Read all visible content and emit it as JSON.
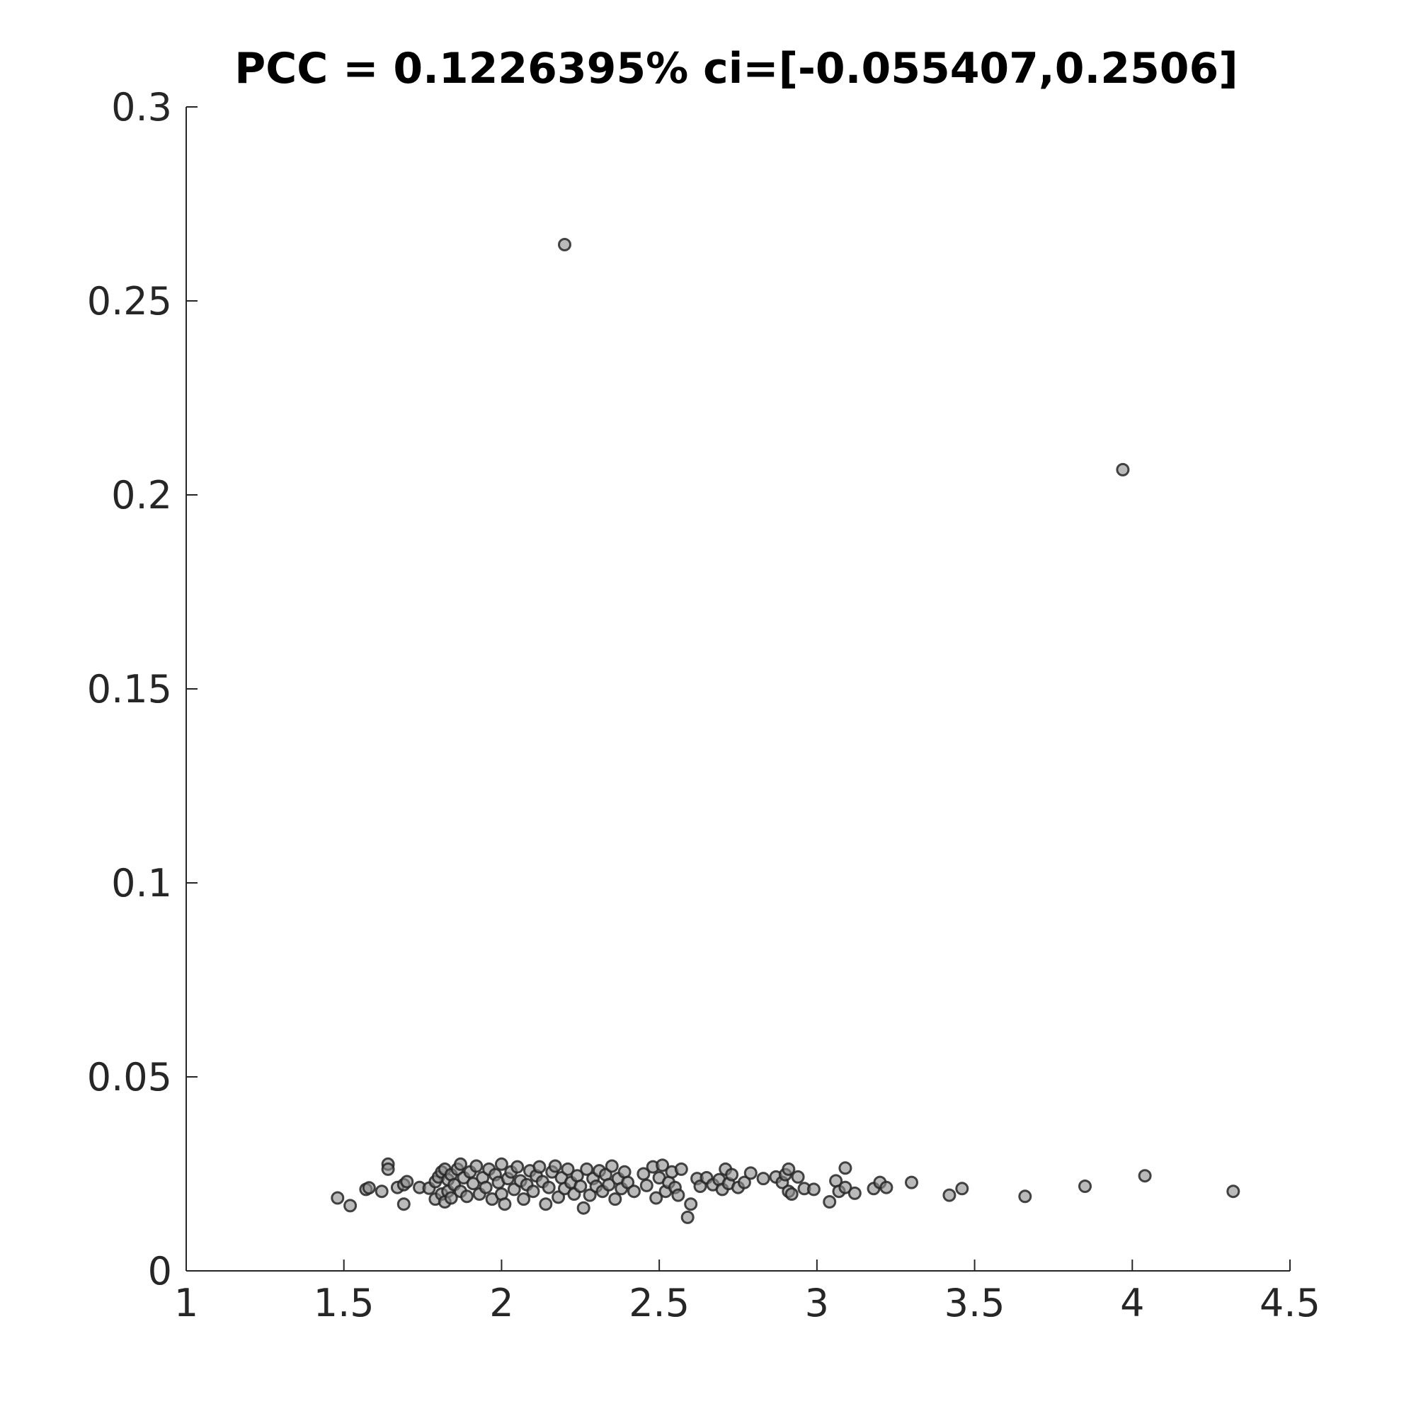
{
  "chart_data": {
    "type": "scatter",
    "title": "PCC = 0.1226395% ci=[-0.055407,0.2506]",
    "xlabel": "",
    "ylabel": "",
    "xlim": [
      1,
      4.5
    ],
    "ylim": [
      0,
      0.3
    ],
    "xticks": [
      "1",
      "1.5",
      "2",
      "2.5",
      "3",
      "3.5",
      "4",
      "4.5"
    ],
    "yticks": [
      "0",
      "0.05",
      "0.1",
      "0.15",
      "0.2",
      "0.25",
      "0.3"
    ],
    "xtick_values": [
      1,
      1.5,
      2,
      2.5,
      3,
      3.5,
      4,
      4.5
    ],
    "ytick_values": [
      0,
      0.05,
      0.1,
      0.15,
      0.2,
      0.25,
      0.3
    ],
    "grid": false,
    "legend": "none",
    "marker_color": "#8c8c8c",
    "edge_color": "#262626",
    "points": [
      [
        2.2,
        0.2645
      ],
      [
        3.97,
        0.2065
      ],
      [
        1.48,
        0.0188
      ],
      [
        1.52,
        0.0168
      ],
      [
        1.57,
        0.021
      ],
      [
        1.58,
        0.0214
      ],
      [
        1.62,
        0.0205
      ],
      [
        1.64,
        0.0275
      ],
      [
        1.64,
        0.0262
      ],
      [
        1.67,
        0.0215
      ],
      [
        1.69,
        0.0222
      ],
      [
        1.69,
        0.0172
      ],
      [
        1.7,
        0.023
      ],
      [
        1.74,
        0.0215
      ],
      [
        1.77,
        0.0213
      ],
      [
        1.79,
        0.023
      ],
      [
        1.79,
        0.0185
      ],
      [
        1.8,
        0.0242
      ],
      [
        1.81,
        0.0255
      ],
      [
        1.81,
        0.0198
      ],
      [
        1.82,
        0.0262
      ],
      [
        1.82,
        0.0178
      ],
      [
        1.83,
        0.0235
      ],
      [
        1.83,
        0.0205
      ],
      [
        1.84,
        0.0248
      ],
      [
        1.84,
        0.0188
      ],
      [
        1.85,
        0.0222
      ],
      [
        1.86,
        0.0262
      ],
      [
        1.87,
        0.0275
      ],
      [
        1.87,
        0.0205
      ],
      [
        1.88,
        0.024
      ],
      [
        1.89,
        0.0192
      ],
      [
        1.9,
        0.0255
      ],
      [
        1.91,
        0.0225
      ],
      [
        1.92,
        0.027
      ],
      [
        1.93,
        0.0198
      ],
      [
        1.94,
        0.024
      ],
      [
        1.95,
        0.0215
      ],
      [
        1.96,
        0.0262
      ],
      [
        1.97,
        0.0185
      ],
      [
        1.98,
        0.0248
      ],
      [
        1.99,
        0.0228
      ],
      [
        2.0,
        0.0275
      ],
      [
        2.0,
        0.0198
      ],
      [
        2.01,
        0.0172
      ],
      [
        2.02,
        0.0238
      ],
      [
        2.03,
        0.0255
      ],
      [
        2.04,
        0.021
      ],
      [
        2.05,
        0.0268
      ],
      [
        2.06,
        0.0232
      ],
      [
        2.07,
        0.0185
      ],
      [
        2.08,
        0.0222
      ],
      [
        2.09,
        0.0258
      ],
      [
        2.1,
        0.0205
      ],
      [
        2.11,
        0.0245
      ],
      [
        2.12,
        0.0268
      ],
      [
        2.13,
        0.023
      ],
      [
        2.14,
        0.0172
      ],
      [
        2.15,
        0.0215
      ],
      [
        2.16,
        0.0255
      ],
      [
        2.17,
        0.027
      ],
      [
        2.18,
        0.019
      ],
      [
        2.19,
        0.024
      ],
      [
        2.2,
        0.0212
      ],
      [
        2.21,
        0.0262
      ],
      [
        2.22,
        0.0228
      ],
      [
        2.23,
        0.0198
      ],
      [
        2.24,
        0.0245
      ],
      [
        2.25,
        0.0218
      ],
      [
        2.26,
        0.0162
      ],
      [
        2.27,
        0.0262
      ],
      [
        2.28,
        0.0195
      ],
      [
        2.29,
        0.0238
      ],
      [
        2.3,
        0.0218
      ],
      [
        2.31,
        0.0258
      ],
      [
        2.32,
        0.0205
      ],
      [
        2.33,
        0.0248
      ],
      [
        2.34,
        0.0222
      ],
      [
        2.35,
        0.027
      ],
      [
        2.36,
        0.0185
      ],
      [
        2.37,
        0.0238
      ],
      [
        2.38,
        0.0212
      ],
      [
        2.39,
        0.0255
      ],
      [
        2.4,
        0.0228
      ],
      [
        2.42,
        0.0205
      ],
      [
        2.45,
        0.025
      ],
      [
        2.46,
        0.022
      ],
      [
        2.48,
        0.0268
      ],
      [
        2.49,
        0.0188
      ],
      [
        2.5,
        0.024
      ],
      [
        2.51,
        0.0272
      ],
      [
        2.52,
        0.0205
      ],
      [
        2.53,
        0.0228
      ],
      [
        2.54,
        0.0255
      ],
      [
        2.55,
        0.0215
      ],
      [
        2.56,
        0.0195
      ],
      [
        2.57,
        0.0262
      ],
      [
        2.59,
        0.0138
      ],
      [
        2.6,
        0.0172
      ],
      [
        2.62,
        0.0238
      ],
      [
        2.63,
        0.0218
      ],
      [
        2.65,
        0.024
      ],
      [
        2.67,
        0.0222
      ],
      [
        2.69,
        0.0235
      ],
      [
        2.7,
        0.021
      ],
      [
        2.71,
        0.0262
      ],
      [
        2.72,
        0.0225
      ],
      [
        2.73,
        0.0248
      ],
      [
        2.75,
        0.0215
      ],
      [
        2.77,
        0.0228
      ],
      [
        2.79,
        0.0252
      ],
      [
        2.83,
        0.0238
      ],
      [
        2.87,
        0.0242
      ],
      [
        2.89,
        0.0228
      ],
      [
        2.9,
        0.0248
      ],
      [
        2.91,
        0.0205
      ],
      [
        2.91,
        0.0262
      ],
      [
        2.92,
        0.0198
      ],
      [
        2.94,
        0.0242
      ],
      [
        2.96,
        0.0212
      ],
      [
        2.99,
        0.021
      ],
      [
        3.04,
        0.0178
      ],
      [
        3.06,
        0.0232
      ],
      [
        3.07,
        0.0205
      ],
      [
        3.09,
        0.0265
      ],
      [
        3.09,
        0.0215
      ],
      [
        3.12,
        0.02
      ],
      [
        3.18,
        0.0212
      ],
      [
        3.2,
        0.0228
      ],
      [
        3.22,
        0.0215
      ],
      [
        3.3,
        0.0228
      ],
      [
        3.42,
        0.0195
      ],
      [
        3.46,
        0.0212
      ],
      [
        3.66,
        0.0192
      ],
      [
        3.85,
        0.0218
      ],
      [
        4.04,
        0.0245
      ],
      [
        4.32,
        0.0205
      ]
    ]
  }
}
